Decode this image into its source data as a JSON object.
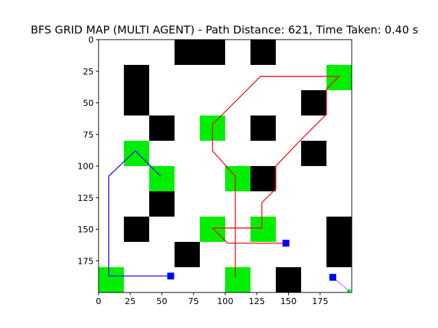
{
  "chart_data": {
    "type": "heatmap",
    "title": "BFS GRID MAP (MULTI AGENT) - Path Distance: 621, Time Taken: 0.40 s",
    "grid_size": [
      200,
      200
    ],
    "cell_size": 20,
    "xlim": [
      0,
      200
    ],
    "ylim": [
      200,
      0
    ],
    "x_ticks": [
      0,
      25,
      50,
      75,
      100,
      125,
      150,
      175
    ],
    "y_ticks": [
      0,
      25,
      50,
      75,
      100,
      125,
      150,
      175
    ],
    "colors": {
      "background": "#ffffff",
      "obstacle": "#000000",
      "goal_cell": "#00ee00",
      "agent_marker": "#0000ff",
      "path_red": "#ff0000",
      "path_blue": "#0000ff",
      "path_magenta": "#ff00ff"
    },
    "obstacles": [
      {
        "x": 60,
        "y": 0,
        "w": 40,
        "h": 20
      },
      {
        "x": 120,
        "y": 0,
        "w": 20,
        "h": 20
      },
      {
        "x": 20,
        "y": 20,
        "w": 20,
        "h": 40
      },
      {
        "x": 160,
        "y": 40,
        "w": 20,
        "h": 20
      },
      {
        "x": 40,
        "y": 60,
        "w": 20,
        "h": 20
      },
      {
        "x": 120,
        "y": 60,
        "w": 20,
        "h": 20
      },
      {
        "x": 160,
        "y": 80,
        "w": 20,
        "h": 20
      },
      {
        "x": 120,
        "y": 100,
        "w": 20,
        "h": 20
      },
      {
        "x": 40,
        "y": 120,
        "w": 20,
        "h": 20
      },
      {
        "x": 20,
        "y": 140,
        "w": 20,
        "h": 20
      },
      {
        "x": 180,
        "y": 140,
        "w": 20,
        "h": 40
      },
      {
        "x": 60,
        "y": 160,
        "w": 20,
        "h": 20
      },
      {
        "x": 140,
        "y": 180,
        "w": 20,
        "h": 20
      }
    ],
    "goal_cells": [
      {
        "x": 180,
        "y": 20
      },
      {
        "x": 80,
        "y": 60
      },
      {
        "x": 20,
        "y": 80
      },
      {
        "x": 40,
        "y": 100
      },
      {
        "x": 100,
        "y": 100
      },
      {
        "x": 80,
        "y": 140
      },
      {
        "x": 120,
        "y": 140
      },
      {
        "x": 0,
        "y": 180
      },
      {
        "x": 100,
        "y": 180
      }
    ],
    "agents": [
      {
        "x": 148,
        "y": 161
      },
      {
        "x": 57,
        "y": 187
      },
      {
        "x": 185,
        "y": 188
      }
    ],
    "series": [
      {
        "color": "#ff0000",
        "points": [
          [
            148,
            161
          ],
          [
            102,
            161
          ],
          [
            90,
            149
          ],
          [
            129,
            149
          ],
          [
            129,
            129
          ],
          [
            140,
            118
          ],
          [
            140,
            100
          ],
          [
            160,
            79
          ],
          [
            180,
            59
          ],
          [
            180,
            39
          ],
          [
            190,
            29
          ],
          [
            128,
            29
          ],
          [
            90,
            67
          ],
          [
            90,
            88
          ],
          [
            108,
            108
          ],
          [
            108,
            188
          ]
        ]
      },
      {
        "color": "#0000ff",
        "points": [
          [
            57,
            187
          ],
          [
            8,
            187
          ],
          [
            8,
            108
          ],
          [
            29,
            88
          ],
          [
            49,
            108
          ]
        ]
      },
      {
        "color": "#ff00ff",
        "points": [
          [
            185,
            188
          ],
          [
            198,
            199
          ]
        ]
      }
    ]
  }
}
